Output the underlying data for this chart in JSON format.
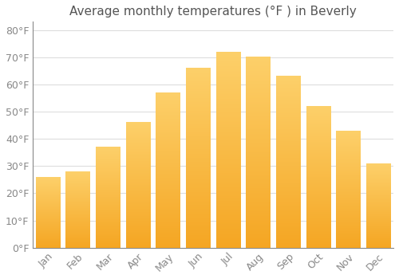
{
  "title": "Average monthly temperatures (°F ) in Beverly",
  "months": [
    "Jan",
    "Feb",
    "Mar",
    "Apr",
    "May",
    "Jun",
    "Jul",
    "Aug",
    "Sep",
    "Oct",
    "Nov",
    "Dec"
  ],
  "values": [
    26,
    28,
    37,
    46,
    57,
    66,
    72,
    70,
    63,
    52,
    43,
    31
  ],
  "bar_color_top": "#FDD06A",
  "bar_color_bottom": "#F5A623",
  "background_color": "#FFFFFF",
  "grid_color": "#DDDDDD",
  "tick_label_color": "#888888",
  "title_color": "#555555",
  "ylim": [
    0,
    83
  ],
  "yticks": [
    0,
    10,
    20,
    30,
    40,
    50,
    60,
    70,
    80
  ],
  "ytick_labels": [
    "0°F",
    "10°F",
    "20°F",
    "30°F",
    "40°F",
    "50°F",
    "60°F",
    "70°F",
    "80°F"
  ],
  "title_fontsize": 11,
  "tick_fontsize": 9,
  "figsize": [
    5.0,
    3.5
  ],
  "dpi": 100
}
